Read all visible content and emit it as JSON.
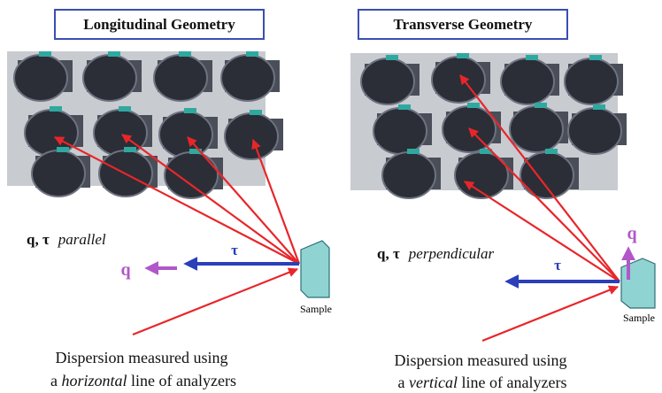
{
  "panels": [
    {
      "title": "Longitudinal Geometry",
      "label_bold": "q, τ",
      "label_italic": "parallel",
      "q_label": "q",
      "tau_label": "τ",
      "sample": "Sample",
      "caption_line1": "Dispersion measured using",
      "caption_line2": [
        "a ",
        "horizontal",
        " line of analyzers"
      ]
    },
    {
      "title": "Transverse Geometry",
      "label_bold": "q, τ",
      "label_italic": "perpendicular",
      "q_label": "q",
      "tau_label": "τ",
      "sample": "Sample",
      "caption_line1": "Dispersion measured using",
      "caption_line2": [
        "a ",
        "vertical",
        " line of analyzers"
      ]
    }
  ]
}
